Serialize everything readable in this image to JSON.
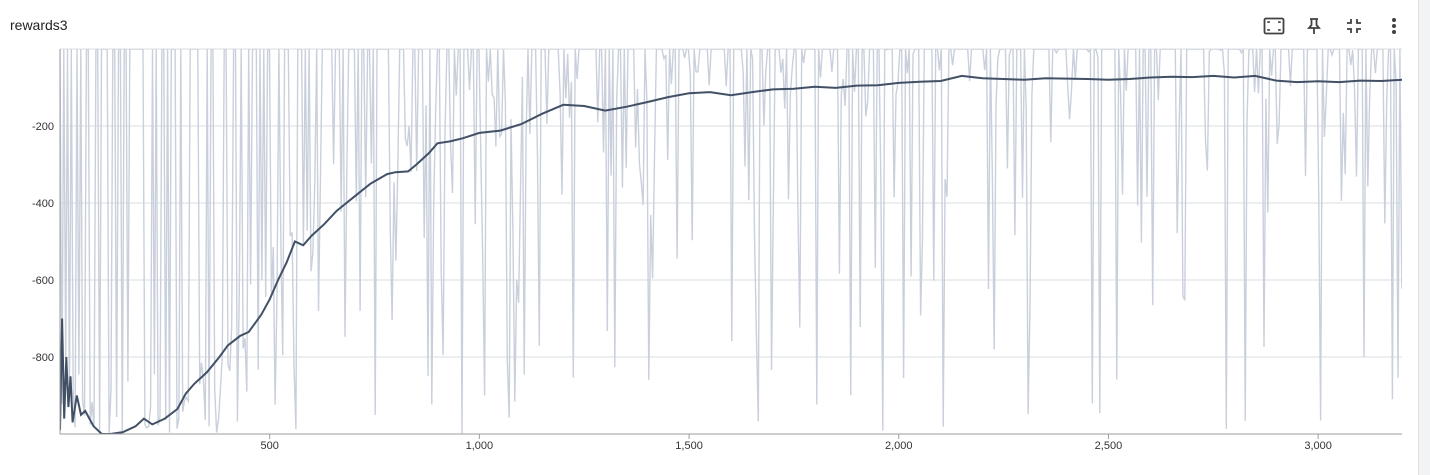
{
  "card": {
    "title": "rewards3"
  },
  "toolbar": {
    "icons": [
      "fit-domain-icon",
      "pin-icon",
      "collapse-icon",
      "more-vert-icon"
    ]
  },
  "colors": {
    "raw_series": "#c9d0dc",
    "smoothed_series": "#425066",
    "grid": "#dadce0",
    "axis": "#9e9e9e"
  },
  "chart_data": {
    "type": "line",
    "title": "rewards3",
    "xlim": [
      0,
      3200
    ],
    "ylim": [
      -1000,
      0
    ],
    "x_ticks": [
      500,
      1000,
      1500,
      2000,
      2500,
      3000
    ],
    "x_tick_labels": [
      "500",
      "1,000",
      "1,500",
      "2,000",
      "2,500",
      "3,000"
    ],
    "y_ticks": [
      -200,
      -400,
      -600,
      -800
    ],
    "y_tick_labels": [
      "-200",
      "-400",
      "-600",
      "-800"
    ],
    "grid": true,
    "series": [
      {
        "role": "smoothed",
        "x": [
          0,
          5,
          10,
          15,
          20,
          25,
          30,
          40,
          50,
          60,
          80,
          100,
          120,
          150,
          180,
          200,
          220,
          250,
          280,
          300,
          320,
          350,
          380,
          400,
          430,
          450,
          480,
          500,
          520,
          540,
          560,
          580,
          600,
          630,
          660,
          700,
          740,
          780,
          800,
          830,
          850,
          880,
          900,
          930,
          960,
          1000,
          1050,
          1100,
          1150,
          1200,
          1250,
          1300,
          1350,
          1400,
          1450,
          1500,
          1550,
          1600,
          1650,
          1700,
          1750,
          1800,
          1850,
          1900,
          1950,
          2000,
          2050,
          2100,
          2150,
          2200,
          2250,
          2300,
          2350,
          2400,
          2450,
          2500,
          2550,
          2600,
          2650,
          2700,
          2750,
          2800,
          2850,
          2900,
          2950,
          3000,
          3050,
          3100,
          3150,
          3200
        ],
        "y": [
          -990,
          -700,
          -960,
          -800,
          -930,
          -850,
          -970,
          -900,
          -950,
          -940,
          -980,
          -1000,
          -1000,
          -995,
          -980,
          -960,
          -975,
          -960,
          -935,
          -895,
          -870,
          -840,
          -800,
          -770,
          -745,
          -735,
          -690,
          -650,
          -600,
          -555,
          -500,
          -510,
          -485,
          -455,
          -420,
          -385,
          -350,
          -325,
          -320,
          -318,
          -300,
          -270,
          -245,
          -240,
          -232,
          -218,
          -212,
          -195,
          -168,
          -145,
          -148,
          -160,
          -150,
          -138,
          -125,
          -115,
          -112,
          -120,
          -112,
          -105,
          -103,
          -98,
          -101,
          -95,
          -94,
          -88,
          -85,
          -83,
          -70,
          -76,
          -78,
          -80,
          -76,
          -77,
          -78,
          -80,
          -78,
          -74,
          -72,
          -73,
          -70,
          -74,
          -70,
          -82,
          -86,
          -84,
          -86,
          -82,
          -83,
          -80
        ]
      }
    ],
    "raw_series": {
      "role": "raw",
      "description_values_min": -1000,
      "description_values_max": 0
    }
  }
}
